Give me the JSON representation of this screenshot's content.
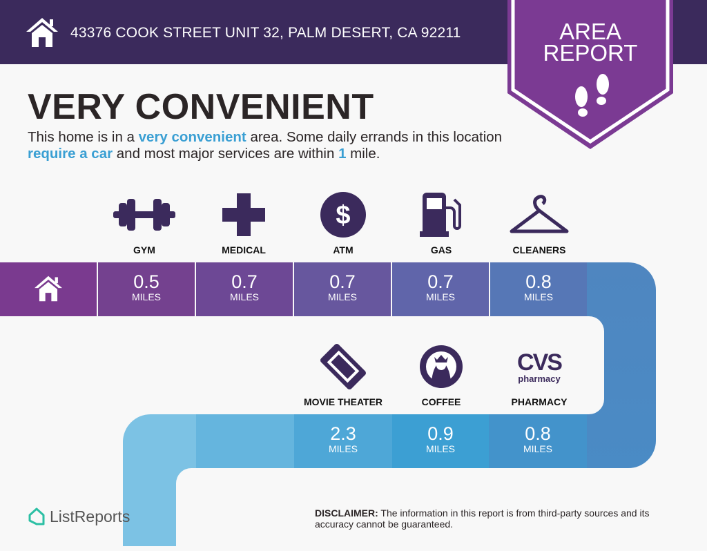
{
  "header": {
    "address": "43376 COOK STREET UNIT 32, PALM DESERT, CA 92211",
    "icon": "home-icon"
  },
  "banner": {
    "line1": "AREA",
    "line2": "REPORT",
    "icon": "footprints-icon"
  },
  "headline": "VERY CONVENIENT",
  "description": {
    "p1": "This home is in a ",
    "h1": "very convenient",
    "p2": " area. Some daily errands in this location ",
    "h2": "require a car",
    "p3": " and most major services are within ",
    "h3": "1",
    "p4": " mile."
  },
  "unit": "MILES",
  "row1": [
    {
      "label": "GYM",
      "value": "0.5",
      "icon": "dumbbell-icon"
    },
    {
      "label": "MEDICAL",
      "value": "0.7",
      "icon": "medical-cross-icon"
    },
    {
      "label": "ATM",
      "value": "0.7",
      "icon": "dollar-icon"
    },
    {
      "label": "GAS",
      "value": "0.7",
      "icon": "gas-pump-icon"
    },
    {
      "label": "CLEANERS",
      "value": "0.8",
      "icon": "hanger-icon"
    }
  ],
  "row2": [
    {
      "label": "MOVIE THEATER",
      "value": "2.3",
      "icon": "ticket-icon"
    },
    {
      "label": "COFFEE",
      "value": "0.9",
      "icon": "starbucks-logo"
    },
    {
      "label": "PHARMACY",
      "value": "0.8",
      "icon": "cvs-logo",
      "logo_text": "CVS",
      "logo_sub": "pharmacy"
    }
  ],
  "colors": {
    "header": "#3b2a5c",
    "banner": "#7b3a93",
    "accent": "#3a9fd3",
    "icon": "#3b2a5c"
  },
  "disclaimer": {
    "bold": "DISCLAIMER:",
    "text": " The information in this report is from third-party sources and its accuracy cannot be guaranteed."
  },
  "brand": "ListReports"
}
